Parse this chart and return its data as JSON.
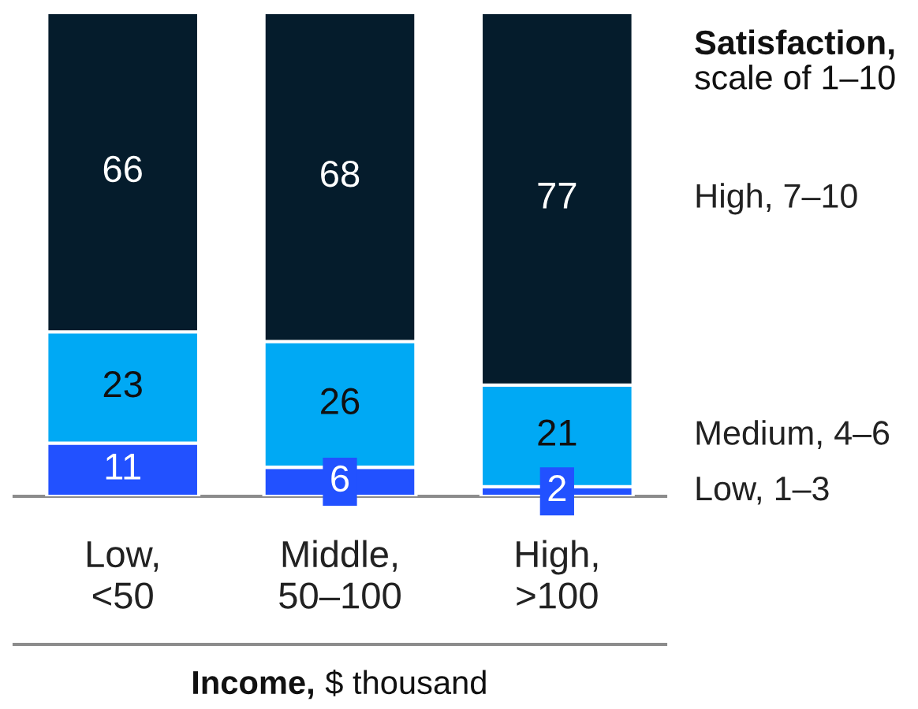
{
  "chart_data": {
    "type": "bar",
    "stacked": true,
    "data_labels": true,
    "tick_labels": "x",
    "categories": [
      "Low,\n<50",
      "Middle,\n50–100",
      "High,\n>100"
    ],
    "series": [
      {
        "name": "Low, 1–3",
        "color": "#2251ff",
        "values": [
          11,
          6,
          2
        ]
      },
      {
        "name": "Medium, 4–6",
        "color": "#00a9f4",
        "values": [
          23,
          26,
          21
        ]
      },
      {
        "name": "High, 7–10",
        "color": "#051c2c",
        "values": [
          66,
          68,
          77
        ]
      }
    ],
    "legend_title": "Satisfaction,\nscale of 1–10",
    "xlabel": "Income, $ thousand"
  }
}
